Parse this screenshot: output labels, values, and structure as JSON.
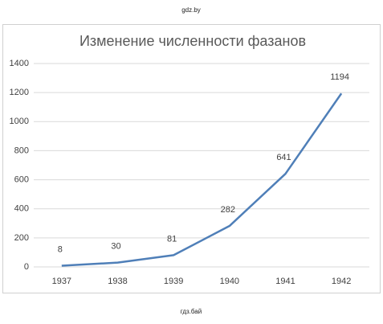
{
  "watermarks": {
    "top": "gdz.by",
    "bottom": "гдз.бай"
  },
  "chart_data": {
    "type": "line",
    "title": "Изменение численности фазанов",
    "categories": [
      "1937",
      "1938",
      "1939",
      "1940",
      "1941",
      "1942"
    ],
    "values": [
      8,
      30,
      81,
      282,
      641,
      1194
    ],
    "color": "#4f7fb8",
    "ylim": [
      0,
      1400
    ],
    "yticks": [
      0,
      200,
      400,
      600,
      800,
      1000,
      1200,
      1400
    ],
    "grid": true
  }
}
